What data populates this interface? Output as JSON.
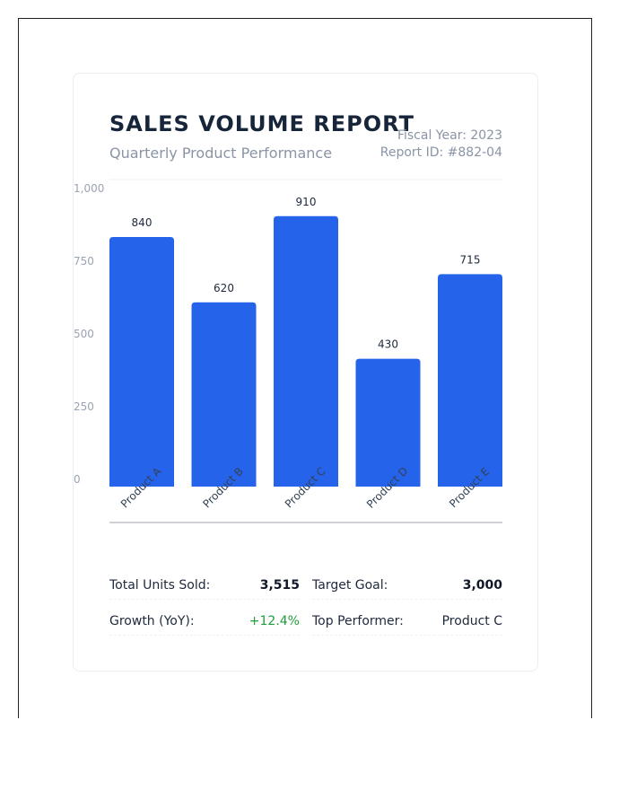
{
  "header": {
    "title": "SALES VOLUME REPORT",
    "subtitle": "Quarterly Product Performance",
    "fiscal_year": "Fiscal Year: 2023",
    "report_id": "Report ID: #882-04"
  },
  "colors": {
    "bar": "#2563eb",
    "positive": "#1f9d3a",
    "title": "#17253a"
  },
  "chart_data": {
    "type": "bar",
    "categories": [
      "Product A",
      "Product B",
      "Product C",
      "Product D",
      "Product E"
    ],
    "values": [
      840,
      620,
      910,
      430,
      715
    ],
    "value_labels": [
      "840",
      "620",
      "910",
      "430",
      "715"
    ],
    "ylim": [
      0,
      1000
    ],
    "yticks": [
      0,
      250,
      500,
      750,
      1000
    ],
    "ytick_labels": [
      "0",
      "250",
      "500",
      "750",
      "1,000"
    ],
    "grid": false,
    "xlabel": "",
    "ylabel": ""
  },
  "stats": {
    "total_units": {
      "label": "Total Units Sold:",
      "value": "3,515"
    },
    "target_goal": {
      "label": "Target Goal:",
      "value": "3,000"
    },
    "growth": {
      "label": "Growth (YoY):",
      "value": "+12.4%"
    },
    "top_performer": {
      "label": "Top Performer:",
      "value": "Product C"
    }
  }
}
